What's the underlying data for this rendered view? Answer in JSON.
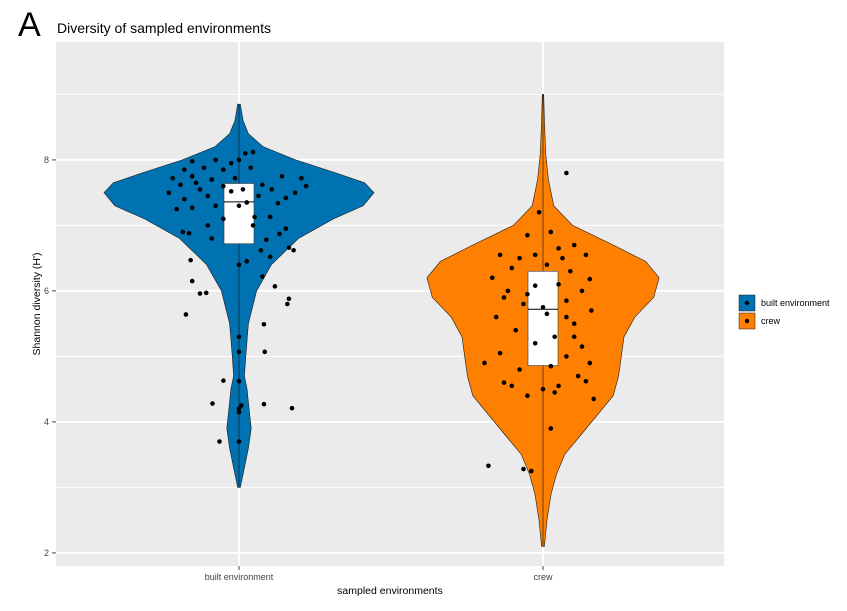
{
  "panel_label": "A",
  "chart_data": {
    "type": "violin",
    "title": "Diversity of sampled environments",
    "xlabel": "sampled environments",
    "ylabel": "Shannon diversity (H')",
    "ylim": [
      1.8,
      9.8
    ],
    "y_ticks": [
      2,
      4,
      6,
      8
    ],
    "y_tick_labels": [
      "2",
      "4",
      "6",
      "8"
    ],
    "categories": [
      "built environment",
      "crew"
    ],
    "grid": true,
    "legend": {
      "position": "right",
      "entries": [
        {
          "label": "built environment",
          "color": "#0072b2"
        },
        {
          "label": "crew",
          "color": "#ff7f00"
        }
      ]
    },
    "series": [
      {
        "name": "built environment",
        "color": "#0072b2",
        "density": [
          [
            3.0,
            0.01
          ],
          [
            3.3,
            0.04
          ],
          [
            3.6,
            0.07
          ],
          [
            3.9,
            0.09
          ],
          [
            4.1,
            0.08
          ],
          [
            4.3,
            0.07
          ],
          [
            4.5,
            0.06
          ],
          [
            4.7,
            0.04
          ],
          [
            5.0,
            0.05
          ],
          [
            5.5,
            0.07
          ],
          [
            6.0,
            0.13
          ],
          [
            6.4,
            0.24
          ],
          [
            6.8,
            0.44
          ],
          [
            7.1,
            0.7
          ],
          [
            7.3,
            0.92
          ],
          [
            7.5,
            1.0
          ],
          [
            7.65,
            0.93
          ],
          [
            7.8,
            0.72
          ],
          [
            8.0,
            0.42
          ],
          [
            8.2,
            0.18
          ],
          [
            8.4,
            0.07
          ],
          [
            8.6,
            0.03
          ],
          [
            8.85,
            0.01
          ]
        ],
        "box": {
          "q1": 6.72,
          "median": 7.36,
          "q3": 7.64
        },
        "points": [
          [
            0.03,
            4.25
          ],
          [
            0.32,
            4.27
          ],
          [
            -0.34,
            4.28
          ],
          [
            -0.25,
            3.7
          ],
          [
            0.0,
            3.7
          ],
          [
            0.0,
            4.15
          ],
          [
            0.0,
            4.2
          ],
          [
            -0.2,
            4.63
          ],
          [
            0.0,
            4.62
          ],
          [
            0.68,
            4.21
          ],
          [
            0.33,
            5.07
          ],
          [
            0.0,
            5.07
          ],
          [
            0.0,
            5.3
          ],
          [
            0.32,
            5.49
          ],
          [
            -0.68,
            5.64
          ],
          [
            -0.5,
            5.96
          ],
          [
            -0.42,
            5.97
          ],
          [
            0.62,
            5.8
          ],
          [
            0.64,
            5.88
          ],
          [
            -0.6,
            6.15
          ],
          [
            0.3,
            6.22
          ],
          [
            0.46,
            6.07
          ],
          [
            -0.62,
            6.47
          ],
          [
            0.0,
            6.4
          ],
          [
            0.1,
            6.45
          ],
          [
            0.28,
            6.62
          ],
          [
            0.4,
            6.52
          ],
          [
            0.64,
            6.66
          ],
          [
            0.7,
            6.62
          ],
          [
            -0.72,
            6.9
          ],
          [
            -0.64,
            6.88
          ],
          [
            0.52,
            6.87
          ],
          [
            0.18,
            7.0
          ],
          [
            -0.4,
            7.0
          ],
          [
            -0.2,
            7.1
          ],
          [
            0.2,
            7.13
          ],
          [
            0.4,
            7.13
          ],
          [
            -0.8,
            7.25
          ],
          [
            -0.6,
            7.27
          ],
          [
            -0.3,
            7.3
          ],
          [
            0.0,
            7.3
          ],
          [
            0.1,
            7.35
          ],
          [
            0.5,
            7.34
          ],
          [
            -0.7,
            7.4
          ],
          [
            -0.4,
            7.45
          ],
          [
            0.25,
            7.45
          ],
          [
            0.6,
            7.42
          ],
          [
            -0.9,
            7.5
          ],
          [
            -0.5,
            7.55
          ],
          [
            -0.1,
            7.52
          ],
          [
            0.05,
            7.55
          ],
          [
            0.42,
            7.55
          ],
          [
            0.72,
            7.5
          ],
          [
            -0.75,
            7.62
          ],
          [
            -0.55,
            7.65
          ],
          [
            -0.2,
            7.6
          ],
          [
            0.3,
            7.62
          ],
          [
            0.86,
            7.6
          ],
          [
            -0.85,
            7.72
          ],
          [
            -0.6,
            7.75
          ],
          [
            -0.35,
            7.7
          ],
          [
            -0.05,
            7.72
          ],
          [
            0.55,
            7.75
          ],
          [
            0.8,
            7.72
          ],
          [
            -0.7,
            7.85
          ],
          [
            -0.45,
            7.88
          ],
          [
            -0.2,
            7.85
          ],
          [
            0.15,
            7.88
          ],
          [
            -0.6,
            7.98
          ],
          [
            -0.3,
            8.0
          ],
          [
            0.0,
            8.0
          ],
          [
            0.08,
            8.1
          ],
          [
            0.18,
            8.12
          ],
          [
            -0.1,
            7.95
          ],
          [
            0.6,
            6.95
          ],
          [
            -0.35,
            6.8
          ],
          [
            0.35,
            6.78
          ]
        ]
      },
      {
        "name": "crew",
        "color": "#ff7f00",
        "density": [
          [
            2.1,
            0.01
          ],
          [
            2.5,
            0.03
          ],
          [
            2.9,
            0.06
          ],
          [
            3.2,
            0.1
          ],
          [
            3.5,
            0.16
          ],
          [
            3.8,
            0.28
          ],
          [
            4.1,
            0.4
          ],
          [
            4.4,
            0.52
          ],
          [
            4.7,
            0.56
          ],
          [
            5.0,
            0.58
          ],
          [
            5.3,
            0.6
          ],
          [
            5.6,
            0.68
          ],
          [
            5.9,
            0.82
          ],
          [
            6.2,
            0.86
          ],
          [
            6.45,
            0.76
          ],
          [
            6.7,
            0.52
          ],
          [
            7.0,
            0.22
          ],
          [
            7.3,
            0.08
          ],
          [
            7.7,
            0.04
          ],
          [
            8.1,
            0.02
          ],
          [
            8.6,
            0.01
          ],
          [
            9.0,
            0.005
          ]
        ],
        "box": {
          "q1": 4.86,
          "median": 5.72,
          "q3": 6.3
        },
        "points": [
          [
            0.3,
            7.8
          ],
          [
            -0.05,
            7.2
          ],
          [
            -0.2,
            6.85
          ],
          [
            0.4,
            6.7
          ],
          [
            0.55,
            6.55
          ],
          [
            0.2,
            6.65
          ],
          [
            -0.55,
            6.55
          ],
          [
            -0.3,
            6.5
          ],
          [
            0.05,
            6.4
          ],
          [
            0.35,
            6.3
          ],
          [
            -0.4,
            6.35
          ],
          [
            -0.65,
            6.2
          ],
          [
            0.6,
            6.18
          ],
          [
            0.2,
            6.1
          ],
          [
            -0.1,
            6.08
          ],
          [
            0.5,
            6.0
          ],
          [
            -0.5,
            5.9
          ],
          [
            0.3,
            5.85
          ],
          [
            -0.25,
            5.8
          ],
          [
            0.62,
            5.7
          ],
          [
            0.05,
            5.65
          ],
          [
            -0.6,
            5.6
          ],
          [
            0.4,
            5.5
          ],
          [
            -0.35,
            5.4
          ],
          [
            0.15,
            5.3
          ],
          [
            -0.1,
            5.2
          ],
          [
            0.5,
            5.15
          ],
          [
            -0.55,
            5.05
          ],
          [
            0.3,
            5.0
          ],
          [
            0.6,
            4.9
          ],
          [
            -0.75,
            4.9
          ],
          [
            0.1,
            4.85
          ],
          [
            -0.3,
            4.8
          ],
          [
            0.45,
            4.7
          ],
          [
            -0.5,
            4.6
          ],
          [
            0.2,
            4.55
          ],
          [
            0.0,
            4.5
          ],
          [
            0.15,
            4.45
          ],
          [
            -0.2,
            4.4
          ],
          [
            0.65,
            4.35
          ],
          [
            -0.4,
            4.55
          ],
          [
            0.1,
            3.9
          ],
          [
            -0.7,
            3.33
          ],
          [
            -0.25,
            3.28
          ],
          [
            -0.15,
            3.25
          ],
          [
            0.55,
            4.62
          ],
          [
            0.4,
            5.3
          ],
          [
            -0.45,
            6.0
          ],
          [
            0.25,
            6.5
          ],
          [
            0.1,
            6.9
          ],
          [
            -0.1,
            6.55
          ],
          [
            0.0,
            5.75
          ],
          [
            0.3,
            5.6
          ],
          [
            -0.2,
            5.95
          ]
        ]
      }
    ]
  }
}
